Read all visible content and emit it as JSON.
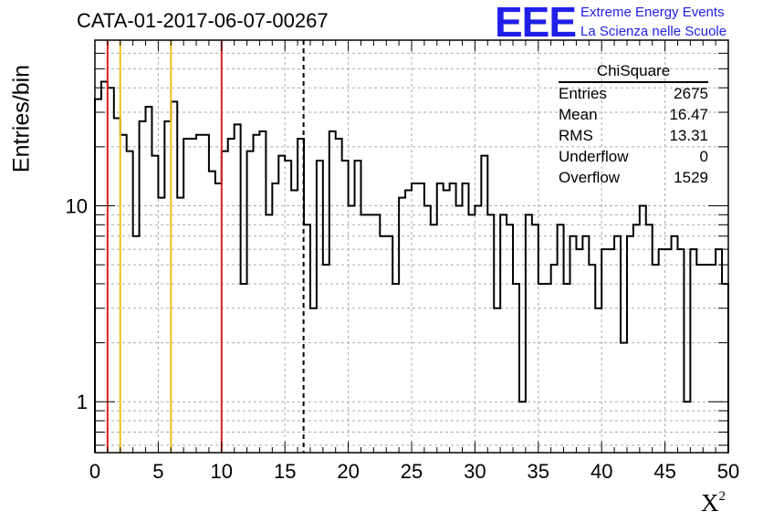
{
  "title": "CATA-01-2017-06-07-00267",
  "logo": {
    "mark": "EEE",
    "line1": "Extreme Energy Events",
    "line2": "La Scienza nelle Scuole",
    "color": "#1f1fe8"
  },
  "stats": {
    "title": "ChiSquare",
    "rows": [
      {
        "label": "Entries",
        "value": "2675"
      },
      {
        "label": "Mean",
        "value": "16.47"
      },
      {
        "label": "RMS",
        "value": "13.31"
      },
      {
        "label": "Underflow",
        "value": "0"
      },
      {
        "label": "Overflow",
        "value": "1529"
      }
    ]
  },
  "chart_data": {
    "type": "histogram",
    "title": "CATA-01-2017-06-07-00267",
    "xlabel": "X",
    "xlabel_superscript": "2",
    "ylabel": "Entries/bin",
    "xlim": [
      0,
      50
    ],
    "ylim": [
      0.55,
      70
    ],
    "yscale": "log",
    "grid": true,
    "bin_width": 0.5,
    "x_ticks": [
      "0",
      "5",
      "10",
      "15",
      "20",
      "25",
      "30",
      "35",
      "40",
      "45",
      "50"
    ],
    "y_ticks": [
      "1",
      "10"
    ],
    "values": [
      35,
      43,
      40,
      28,
      23,
      19,
      7,
      27,
      32,
      18,
      11,
      27,
      34,
      11,
      22,
      22,
      23,
      23,
      15,
      13,
      19,
      22,
      26,
      4,
      19,
      23,
      24,
      9,
      13,
      18,
      17,
      12,
      22,
      8,
      3,
      17,
      5,
      24,
      22,
      17,
      10,
      17,
      9,
      9,
      9,
      7,
      7,
      4,
      11,
      12,
      13,
      13,
      10,
      8,
      13,
      12,
      13,
      10,
      13,
      9,
      10,
      18,
      9,
      3,
      9,
      8,
      4,
      1,
      9,
      8,
      4,
      4,
      5,
      8,
      4,
      7,
      6,
      7,
      5,
      3,
      6,
      6,
      7,
      2,
      7,
      8,
      10,
      8,
      5,
      6,
      6,
      7,
      6,
      1,
      6,
      5,
      5,
      5,
      6,
      4
    ],
    "vertical_lines": [
      {
        "x": 1,
        "color": "#e02020",
        "style": "solid"
      },
      {
        "x": 2,
        "color": "#f0c020",
        "style": "solid"
      },
      {
        "x": 6,
        "color": "#f0c020",
        "style": "solid"
      },
      {
        "x": 10,
        "color": "#e02020",
        "style": "solid"
      },
      {
        "x": 16.47,
        "color": "#000000",
        "style": "dashed"
      }
    ]
  }
}
